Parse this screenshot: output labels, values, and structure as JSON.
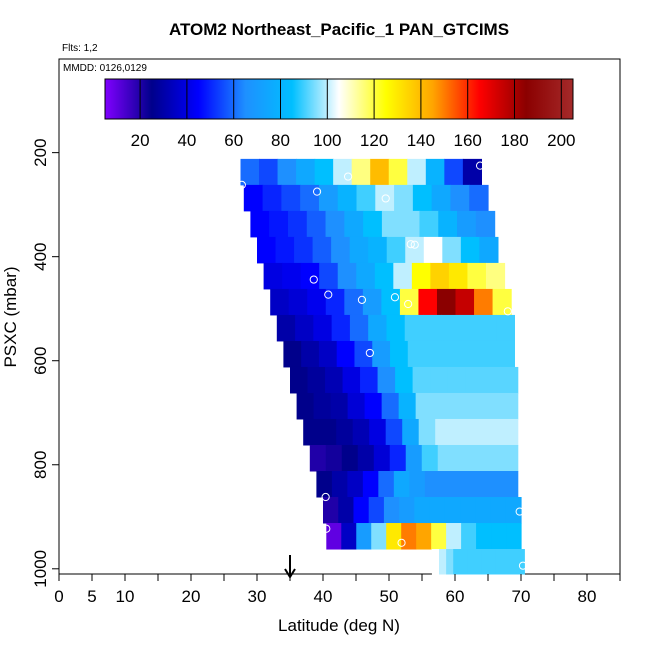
{
  "header": {
    "title": "ATOM2 Northeast_Pacific_1 PAN_GTCIMS",
    "flights": "Flts: 1,2",
    "dates": "MMDD: 0126,0129"
  },
  "chart_data": {
    "type": "heatmap",
    "xlabel": "Latitude (deg N)",
    "ylabel": "PSXC (mbar)",
    "xlim": [
      0,
      85
    ],
    "ylim": [
      1010,
      20
    ],
    "x_ticks": [
      0,
      5,
      10,
      20,
      30,
      40,
      50,
      60,
      70,
      80
    ],
    "x_minor_ticks": [
      15,
      25,
      35,
      45,
      55,
      65,
      75,
      85
    ],
    "y_ticks": [
      200,
      400,
      600,
      800,
      1000
    ],
    "colorbar": {
      "range": [
        5,
        205
      ],
      "ticks": [
        20,
        40,
        60,
        80,
        100,
        120,
        140,
        160,
        180,
        200
      ],
      "colors": [
        "#8000ff",
        "#00008b",
        "#0000ff",
        "#1e90ff",
        "#00bfff",
        "#ffffff",
        "#ffff00",
        "#ffa500",
        "#ff0000",
        "#8b0000",
        "#a52a2a"
      ]
    },
    "arrow_marker_latitude": 35,
    "rows": [
      {
        "p_top": 212,
        "p_bot": 262,
        "x0": 27.5,
        "x1": 64,
        "v": [
          60,
          55,
          65,
          75,
          85,
          100,
          115,
          140,
          120,
          100,
          80,
          55,
          30
        ]
      },
      {
        "p_top": 262,
        "p_bot": 312,
        "x0": 28,
        "x1": 65,
        "v": [
          45,
          50,
          55,
          60,
          70,
          80,
          90,
          100,
          95,
          85,
          75,
          65,
          60
        ]
      },
      {
        "p_top": 312,
        "p_bot": 362,
        "x0": 29,
        "x1": 66,
        "v": [
          45,
          48,
          52,
          58,
          65,
          75,
          85,
          95,
          95,
          90,
          80,
          70,
          65
        ]
      },
      {
        "p_top": 362,
        "p_bot": 412,
        "x0": 30,
        "x1": 66.5,
        "v": [
          45,
          48,
          52,
          58,
          65,
          75,
          80,
          90,
          100,
          105,
          95,
          85,
          75
        ]
      },
      {
        "p_top": 412,
        "p_bot": 462,
        "x0": 31,
        "x1": 67.5,
        "v": [
          40,
          42,
          45,
          55,
          65,
          75,
          85,
          100,
          125,
          135,
          130,
          120,
          115
        ]
      },
      {
        "p_top": 462,
        "p_bot": 512,
        "x0": 32,
        "x1": 68.5,
        "v": [
          35,
          38,
          42,
          50,
          60,
          70,
          85,
          120,
          165,
          185,
          175,
          150,
          120
        ]
      },
      {
        "p_top": 512,
        "p_bot": 562,
        "x0": 33,
        "x1": 69,
        "v": [
          30,
          35,
          40,
          50,
          60,
          75,
          85,
          90,
          90,
          90,
          90,
          90,
          90
        ]
      },
      {
        "p_top": 562,
        "p_bot": 612,
        "x0": 34,
        "x1": 69,
        "v": [
          25,
          30,
          35,
          45,
          55,
          70,
          85,
          90,
          90,
          90,
          90,
          90,
          90
        ]
      },
      {
        "p_top": 612,
        "p_bot": 662,
        "x0": 35,
        "x1": 69.5,
        "v": [
          25,
          28,
          32,
          40,
          50,
          65,
          85,
          92,
          92,
          92,
          92,
          92,
          92
        ]
      },
      {
        "p_top": 662,
        "p_bot": 712,
        "x0": 36,
        "x1": 69.5,
        "v": [
          25,
          28,
          30,
          38,
          45,
          60,
          80,
          95,
          95,
          95,
          95,
          95,
          95
        ]
      },
      {
        "p_top": 712,
        "p_bot": 762,
        "x0": 37,
        "x1": 69.5,
        "v": [
          25,
          25,
          28,
          32,
          40,
          55,
          75,
          95,
          100,
          100,
          100,
          100,
          100
        ]
      },
      {
        "p_top": 762,
        "p_bot": 812,
        "x0": 38,
        "x1": 69.5,
        "v": [
          20,
          22,
          25,
          30,
          38,
          50,
          70,
          90,
          95,
          95,
          95,
          95,
          95
        ]
      },
      {
        "p_top": 812,
        "p_bot": 862,
        "x0": 39,
        "x1": 69.5,
        "v": [
          25,
          30,
          35,
          45,
          60,
          75,
          70,
          65,
          65,
          65,
          65,
          65,
          65
        ]
      },
      {
        "p_top": 862,
        "p_bot": 912,
        "x0": 40,
        "x1": 70,
        "v": [
          20,
          30,
          45,
          55,
          65,
          70,
          75,
          75,
          75,
          75,
          75,
          75,
          75
        ]
      },
      {
        "p_top": 912,
        "p_bot": 962,
        "x0": 40.5,
        "x1": 70,
        "v": [
          10,
          35,
          70,
          95,
          130,
          150,
          145,
          120,
          100,
          90,
          85,
          85,
          85
        ]
      },
      {
        "p_top": 962,
        "p_bot": 1010,
        "x0": 56.5,
        "x1": 70.5,
        "v": [
          105,
          100,
          95,
          90,
          90,
          90,
          90,
          90,
          90,
          90,
          90,
          90,
          90
        ]
      }
    ],
    "points": [
      {
        "x": 63.8,
        "y": 225
      },
      {
        "x": 27.7,
        "y": 262
      },
      {
        "x": 43.8,
        "y": 246
      },
      {
        "x": 39.1,
        "y": 275
      },
      {
        "x": 49.5,
        "y": 288
      },
      {
        "x": 53.3,
        "y": 376
      },
      {
        "x": 53.9,
        "y": 377
      },
      {
        "x": 38.6,
        "y": 444
      },
      {
        "x": 40.8,
        "y": 473
      },
      {
        "x": 45.9,
        "y": 483
      },
      {
        "x": 50.9,
        "y": 478
      },
      {
        "x": 52.9,
        "y": 491
      },
      {
        "x": 68.0,
        "y": 505
      },
      {
        "x": 47.1,
        "y": 585
      },
      {
        "x": 40.4,
        "y": 862
      },
      {
        "x": 69.8,
        "y": 890
      },
      {
        "x": 40.5,
        "y": 923
      },
      {
        "x": 51.9,
        "y": 950
      },
      {
        "x": 70.3,
        "y": 994
      }
    ]
  }
}
